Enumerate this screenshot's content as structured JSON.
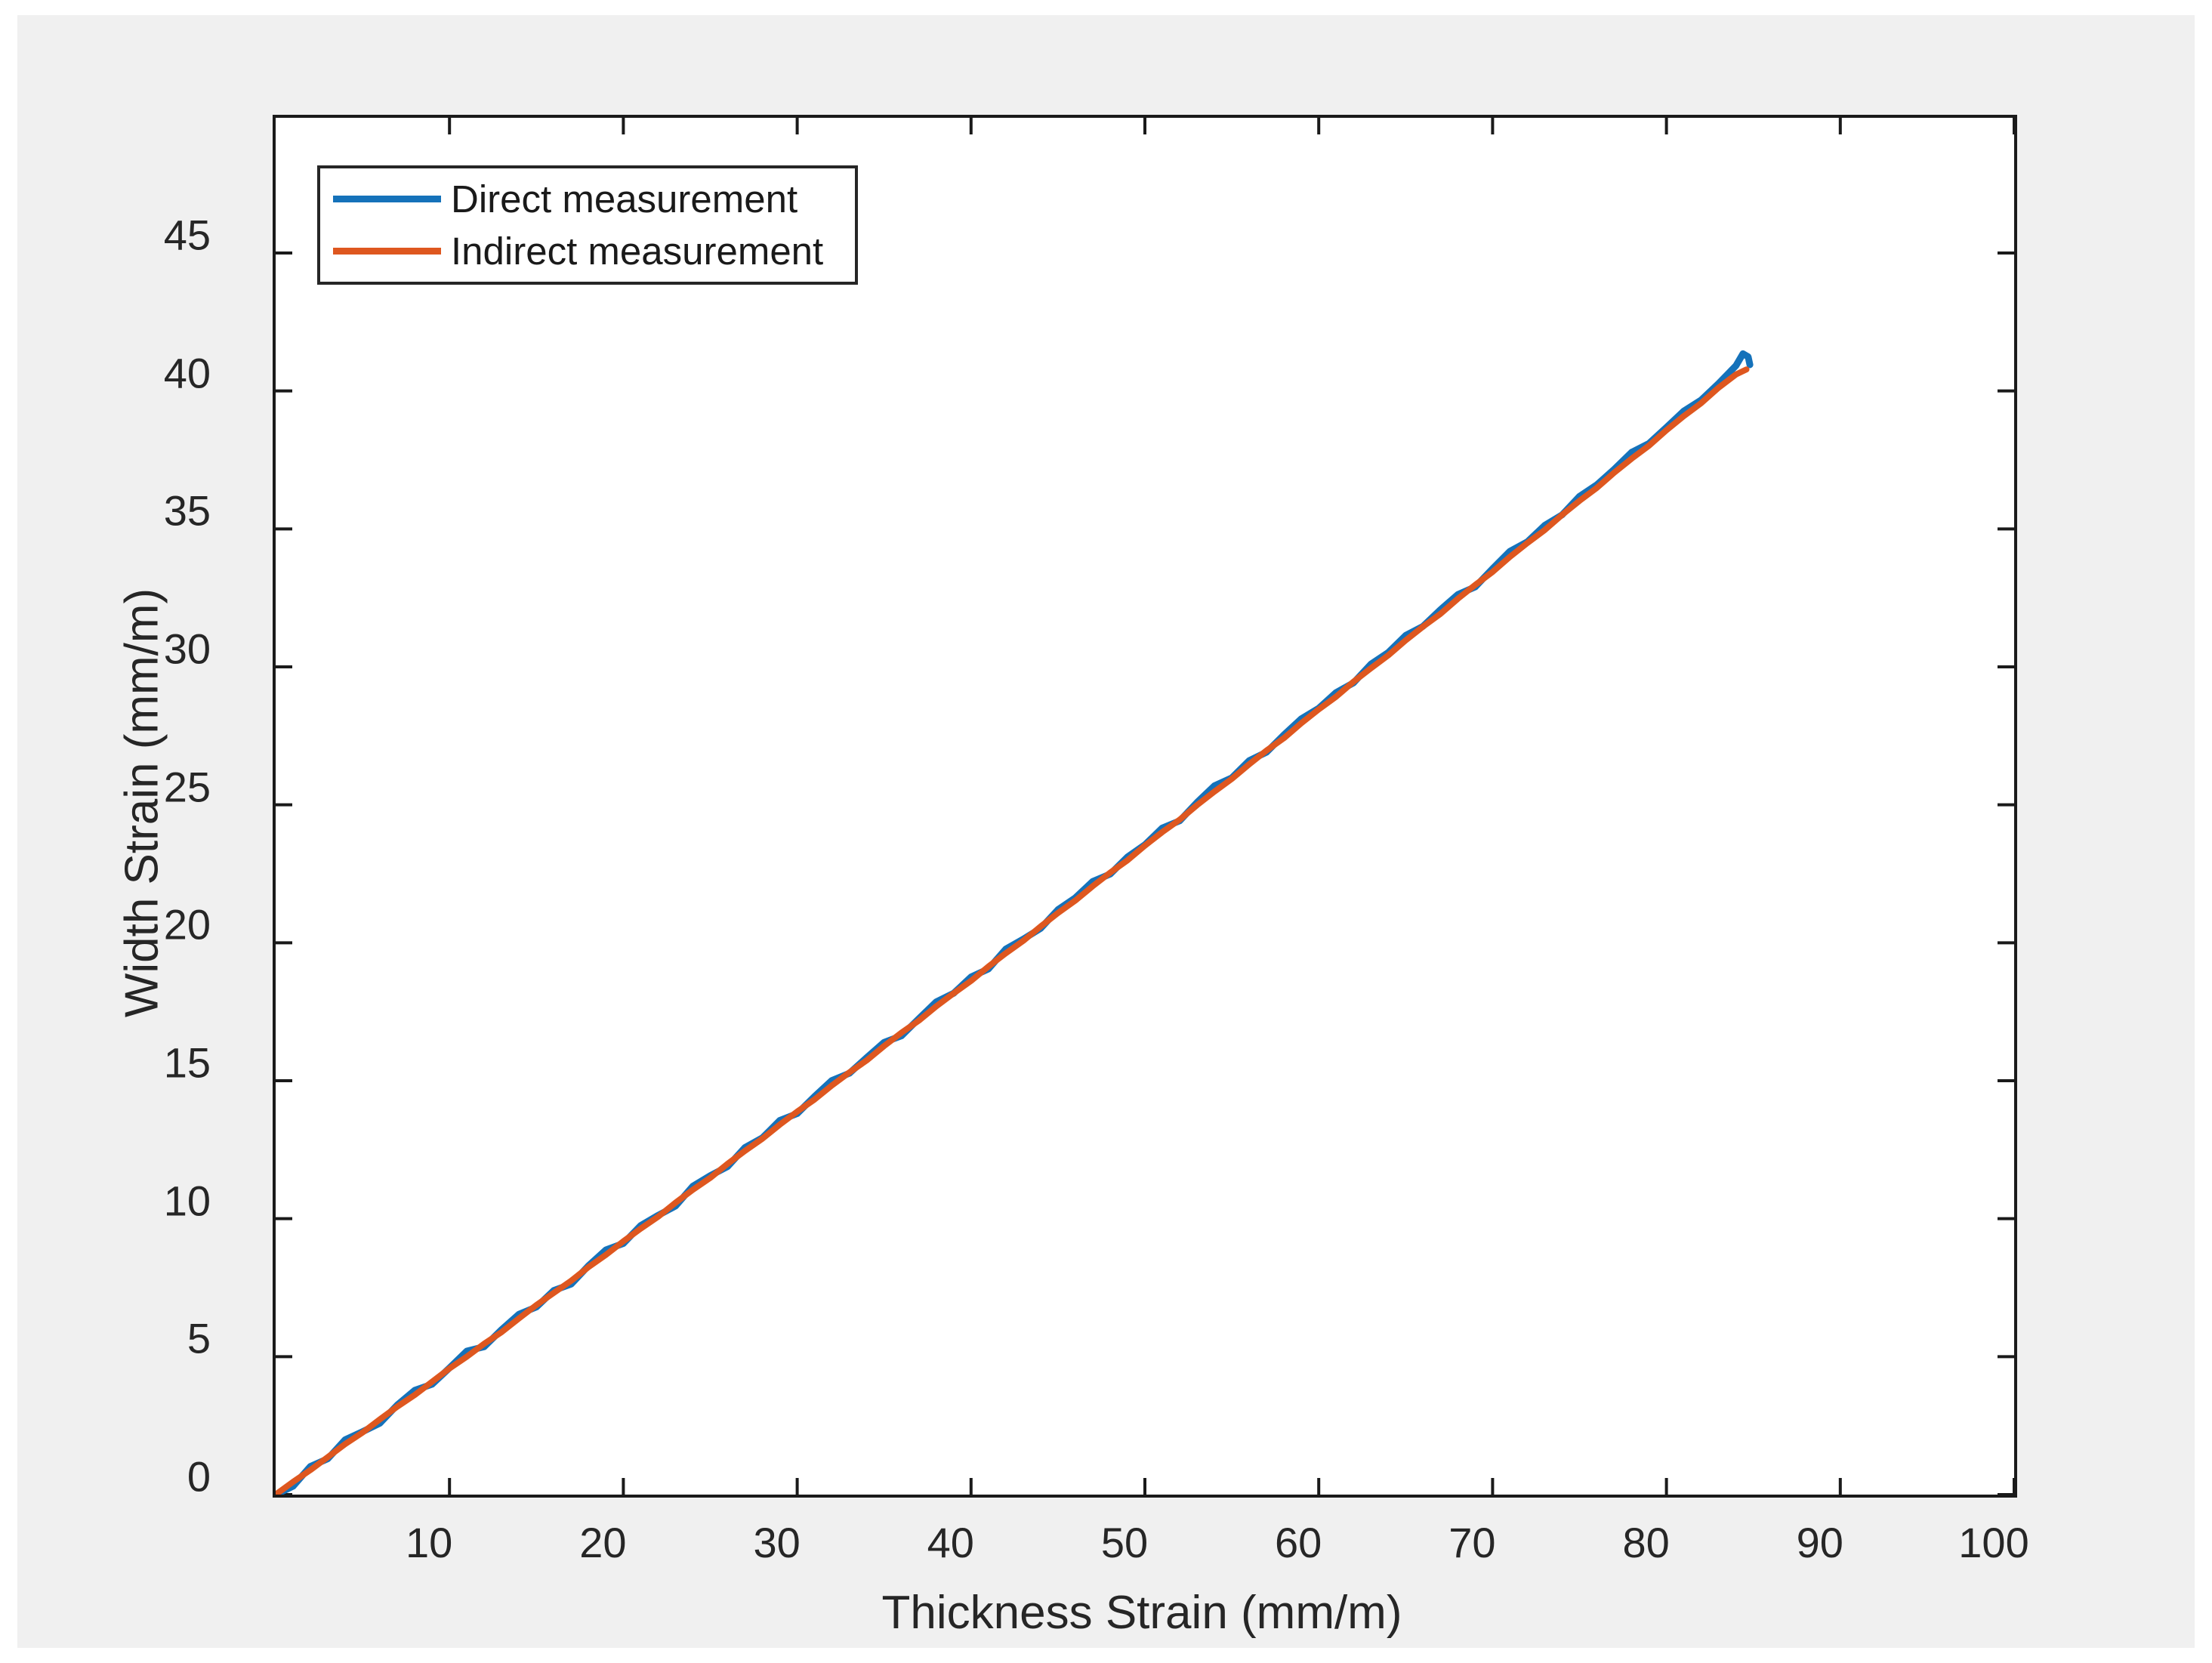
{
  "figure": {
    "page_background": "#ffffff",
    "canvas_background": "#F0F0F0",
    "axes_background": "#ffffff",
    "axis_color": "#1a1a1a",
    "tick_label_color": "#262626"
  },
  "chart_data": {
    "type": "line",
    "title": "",
    "xlabel": "Thickness Strain (mm/m)",
    "ylabel": "Width Strain (mm/m)",
    "xlim": [
      0,
      100
    ],
    "ylim": [
      0,
      49.9
    ],
    "x_ticks": [
      10,
      20,
      30,
      40,
      50,
      60,
      70,
      80,
      90,
      100
    ],
    "y_ticks": [
      0,
      5,
      10,
      15,
      20,
      25,
      30,
      35,
      40,
      45
    ],
    "grid": false,
    "box": true,
    "tick_direction": "in",
    "legend_position": "top-left",
    "series": [
      {
        "name": "Direct measurement",
        "color": "#1572BA",
        "line_width": 9,
        "points": [
          [
            0,
            0
          ],
          [
            1,
            0.3
          ],
          [
            2,
            1.02
          ],
          [
            3,
            1.3
          ],
          [
            4,
            1.99
          ],
          [
            5,
            2.28
          ],
          [
            6,
            2.59
          ],
          [
            7,
            3.25
          ],
          [
            8,
            3.78
          ],
          [
            9,
            4.0
          ],
          [
            10,
            4.59
          ],
          [
            11,
            5.2
          ],
          [
            12,
            5.36
          ],
          [
            13,
            5.98
          ],
          [
            14,
            6.54
          ],
          [
            15,
            6.8
          ],
          [
            16,
            7.4
          ],
          [
            17,
            7.63
          ],
          [
            18,
            8.3
          ],
          [
            19,
            8.87
          ],
          [
            20,
            9.1
          ],
          [
            21,
            9.75
          ],
          [
            22,
            10.12
          ],
          [
            23,
            10.46
          ],
          [
            24,
            11.18
          ],
          [
            25,
            11.56
          ],
          [
            26,
            11.89
          ],
          [
            27,
            12.58
          ],
          [
            28,
            12.93
          ],
          [
            29,
            13.56
          ],
          [
            30,
            13.81
          ],
          [
            31,
            14.43
          ],
          [
            32,
            15.01
          ],
          [
            33,
            15.27
          ],
          [
            34,
            15.84
          ],
          [
            35,
            16.39
          ],
          [
            36,
            16.63
          ],
          [
            37,
            17.25
          ],
          [
            38,
            17.86
          ],
          [
            39,
            18.17
          ],
          [
            40,
            18.76
          ],
          [
            41,
            19.05
          ],
          [
            42,
            19.77
          ],
          [
            43,
            20.13
          ],
          [
            44,
            20.52
          ],
          [
            45,
            21.2
          ],
          [
            46,
            21.63
          ],
          [
            47,
            22.22
          ],
          [
            48,
            22.49
          ],
          [
            49,
            23.11
          ],
          [
            50,
            23.55
          ],
          [
            51,
            24.16
          ],
          [
            52,
            24.42
          ],
          [
            53,
            25.09
          ],
          [
            54,
            25.69
          ],
          [
            55,
            25.98
          ],
          [
            56,
            26.6
          ],
          [
            57,
            26.91
          ],
          [
            58,
            27.54
          ],
          [
            59,
            28.12
          ],
          [
            60,
            28.5
          ],
          [
            61,
            29.07
          ],
          [
            62,
            29.42
          ],
          [
            63,
            30.1
          ],
          [
            64,
            30.52
          ],
          [
            65,
            31.14
          ],
          [
            66,
            31.47
          ],
          [
            67,
            32.07
          ],
          [
            68,
            32.62
          ],
          [
            69,
            32.9
          ],
          [
            70,
            33.56
          ],
          [
            71,
            34.19
          ],
          [
            72,
            34.53
          ],
          [
            73,
            35.13
          ],
          [
            74,
            35.51
          ],
          [
            75,
            36.18
          ],
          [
            76,
            36.6
          ],
          [
            77,
            37.16
          ],
          [
            78,
            37.78
          ],
          [
            79,
            38.1
          ],
          [
            80,
            38.68
          ],
          [
            81,
            39.27
          ],
          [
            82,
            39.67
          ],
          [
            83,
            40.27
          ],
          [
            84,
            40.92
          ],
          [
            84.4,
            41.35
          ],
          [
            84.7,
            41.24
          ],
          [
            84.8,
            40.95
          ]
        ]
      },
      {
        "name": "Indirect measurement",
        "color": "#DE571F",
        "line_width": 8,
        "points": [
          [
            0,
            0
          ],
          [
            1,
            0.46
          ],
          [
            2,
            0.89
          ],
          [
            3,
            1.36
          ],
          [
            4,
            1.83
          ],
          [
            5,
            2.25
          ],
          [
            6,
            2.73
          ],
          [
            7,
            3.19
          ],
          [
            8,
            3.61
          ],
          [
            9,
            4.09
          ],
          [
            10,
            4.57
          ],
          [
            11,
            5.0
          ],
          [
            12,
            5.47
          ],
          [
            13,
            5.89
          ],
          [
            14,
            6.39
          ],
          [
            15,
            6.87
          ],
          [
            16,
            7.31
          ],
          [
            17,
            7.75
          ],
          [
            18,
            8.25
          ],
          [
            19,
            8.69
          ],
          [
            20,
            9.18
          ],
          [
            21,
            9.64
          ],
          [
            22,
            10.07
          ],
          [
            23,
            10.58
          ],
          [
            24,
            11.05
          ],
          [
            25,
            11.48
          ],
          [
            26,
            11.99
          ],
          [
            27,
            12.46
          ],
          [
            28,
            12.9
          ],
          [
            29,
            13.41
          ],
          [
            30,
            13.88
          ],
          [
            31,
            14.32
          ],
          [
            32,
            14.83
          ],
          [
            33,
            15.3
          ],
          [
            34,
            15.74
          ],
          [
            35,
            16.26
          ],
          [
            36,
            16.74
          ],
          [
            37,
            17.18
          ],
          [
            38,
            17.7
          ],
          [
            39,
            18.17
          ],
          [
            40,
            18.62
          ],
          [
            41,
            19.14
          ],
          [
            42,
            19.62
          ],
          [
            43,
            20.07
          ],
          [
            44,
            20.59
          ],
          [
            45,
            21.08
          ],
          [
            46,
            21.53
          ],
          [
            47,
            22.05
          ],
          [
            48,
            22.54
          ],
          [
            49,
            22.99
          ],
          [
            50,
            23.52
          ],
          [
            51,
            24.01
          ],
          [
            52,
            24.46
          ],
          [
            53,
            24.99
          ],
          [
            54,
            25.48
          ],
          [
            55,
            25.94
          ],
          [
            56,
            26.47
          ],
          [
            57,
            26.97
          ],
          [
            58,
            27.42
          ],
          [
            59,
            27.96
          ],
          [
            60,
            28.46
          ],
          [
            61,
            28.92
          ],
          [
            62,
            29.46
          ],
          [
            63,
            29.95
          ],
          [
            64,
            30.42
          ],
          [
            65,
            30.96
          ],
          [
            66,
            31.46
          ],
          [
            67,
            31.92
          ],
          [
            68,
            32.47
          ],
          [
            69,
            32.97
          ],
          [
            70,
            33.44
          ],
          [
            71,
            33.99
          ],
          [
            72,
            34.49
          ],
          [
            73,
            34.96
          ],
          [
            74,
            35.51
          ],
          [
            75,
            36.02
          ],
          [
            76,
            36.49
          ],
          [
            77,
            37.04
          ],
          [
            78,
            37.55
          ],
          [
            79,
            38.02
          ],
          [
            80,
            38.58
          ],
          [
            81,
            39.09
          ],
          [
            82,
            39.56
          ],
          [
            83,
            40.12
          ],
          [
            84,
            40.6
          ],
          [
            84.6,
            40.78
          ]
        ]
      }
    ]
  }
}
